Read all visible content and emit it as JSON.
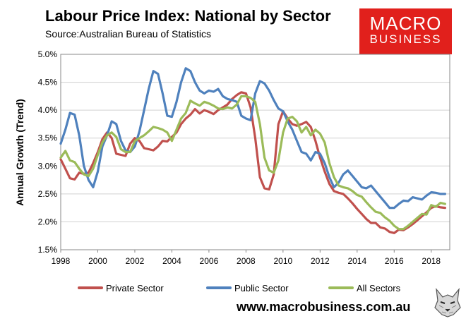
{
  "header": {
    "title": "Labour Price Index: National by Sector",
    "subtitle": "Source:Australian Bureau of Statistics"
  },
  "brand": {
    "line1": "MACRO",
    "line2": "BUSINESS",
    "color": "#e1201c"
  },
  "footer": {
    "url": "www.macrobusiness.com.au",
    "logo_icon": "wolf-icon"
  },
  "chart_data": {
    "type": "line",
    "title": "Labour Price Index: National by Sector",
    "xlabel": "",
    "ylabel": "Annual Growth (Trend)",
    "xlim": [
      1998,
      2019
    ],
    "ylim": [
      1.5,
      5.0
    ],
    "x_ticks": [
      1998,
      2000,
      2002,
      2004,
      2006,
      2008,
      2010,
      2012,
      2014,
      2016,
      2018
    ],
    "x_tick_labels": [
      "1998",
      "2000",
      "2002",
      "2004",
      "2006",
      "2008",
      "2010",
      "2012",
      "2014",
      "2016",
      "2018"
    ],
    "y_ticks": [
      1.5,
      2.0,
      2.5,
      3.0,
      3.5,
      4.0,
      4.5,
      5.0
    ],
    "y_tick_labels": [
      "1.5%",
      "2.0%",
      "2.5%",
      "3.0%",
      "3.5%",
      "4.0%",
      "4.5%",
      "5.0%"
    ],
    "grid": "horizontal",
    "legend_position": "bottom",
    "x": [
      1998.0,
      1998.25,
      1998.5,
      1998.75,
      1999.0,
      1999.25,
      1999.5,
      1999.75,
      2000.0,
      2000.25,
      2000.5,
      2000.75,
      2001.0,
      2001.25,
      2001.5,
      2001.75,
      2002.0,
      2002.25,
      2002.5,
      2002.75,
      2003.0,
      2003.25,
      2003.5,
      2003.75,
      2004.0,
      2004.25,
      2004.5,
      2004.75,
      2005.0,
      2005.25,
      2005.5,
      2005.75,
      2006.0,
      2006.25,
      2006.5,
      2006.75,
      2007.0,
      2007.25,
      2007.5,
      2007.75,
      2008.0,
      2008.25,
      2008.5,
      2008.75,
      2009.0,
      2009.25,
      2009.5,
      2009.75,
      2010.0,
      2010.25,
      2010.5,
      2010.75,
      2011.0,
      2011.25,
      2011.5,
      2011.75,
      2012.0,
      2012.25,
      2012.5,
      2012.75,
      2013.0,
      2013.25,
      2013.5,
      2013.75,
      2014.0,
      2014.25,
      2014.5,
      2014.75,
      2015.0,
      2015.25,
      2015.5,
      2015.75,
      2016.0,
      2016.25,
      2016.5,
      2016.75,
      2017.0,
      2017.25,
      2017.5,
      2017.75,
      2018.0,
      2018.25,
      2018.5,
      2018.75
    ],
    "series": [
      {
        "name": "Private Sector",
        "color": "#c0504d",
        "values": [
          3.12,
          2.95,
          2.78,
          2.76,
          2.88,
          2.86,
          2.88,
          3.05,
          3.25,
          3.48,
          3.6,
          3.5,
          3.22,
          3.2,
          3.18,
          3.4,
          3.5,
          3.45,
          3.32,
          3.3,
          3.28,
          3.35,
          3.45,
          3.44,
          3.52,
          3.6,
          3.75,
          3.85,
          3.92,
          4.02,
          3.94,
          4.0,
          3.97,
          3.93,
          4.0,
          4.05,
          4.1,
          4.2,
          4.27,
          4.32,
          4.3,
          4.05,
          3.5,
          2.8,
          2.6,
          2.58,
          2.85,
          3.75,
          3.98,
          3.85,
          3.75,
          3.72,
          3.75,
          3.79,
          3.7,
          3.45,
          3.15,
          2.9,
          2.68,
          2.55,
          2.52,
          2.5,
          2.42,
          2.33,
          2.23,
          2.14,
          2.05,
          1.98,
          1.98,
          1.9,
          1.88,
          1.82,
          1.8,
          1.86,
          1.85,
          1.9,
          1.96,
          2.03,
          2.1,
          2.17,
          2.25,
          2.28,
          2.26,
          2.25
        ]
      },
      {
        "name": "Public Sector",
        "color": "#4f81bd",
        "values": [
          3.4,
          3.65,
          3.95,
          3.92,
          3.55,
          3.0,
          2.75,
          2.62,
          2.9,
          3.35,
          3.55,
          3.8,
          3.75,
          3.45,
          3.28,
          3.25,
          3.35,
          3.62,
          4.0,
          4.38,
          4.7,
          4.65,
          4.3,
          3.9,
          3.88,
          4.15,
          4.5,
          4.75,
          4.7,
          4.5,
          4.35,
          4.3,
          4.35,
          4.33,
          4.38,
          4.25,
          4.2,
          4.18,
          4.15,
          3.9,
          3.85,
          3.82,
          4.3,
          4.52,
          4.48,
          4.35,
          4.18,
          4.03,
          3.98,
          3.8,
          3.65,
          3.45,
          3.25,
          3.22,
          3.1,
          3.25,
          3.22,
          3.05,
          2.8,
          2.62,
          2.7,
          2.85,
          2.92,
          2.82,
          2.72,
          2.62,
          2.6,
          2.65,
          2.55,
          2.45,
          2.35,
          2.25,
          2.25,
          2.32,
          2.38,
          2.37,
          2.44,
          2.42,
          2.4,
          2.47,
          2.53,
          2.52,
          2.5,
          2.5
        ]
      },
      {
        "name": "All Sectors",
        "color": "#9bbb59",
        "values": [
          3.15,
          3.27,
          3.1,
          3.07,
          2.95,
          2.85,
          2.82,
          2.95,
          3.2,
          3.42,
          3.55,
          3.6,
          3.52,
          3.3,
          3.25,
          3.25,
          3.45,
          3.5,
          3.55,
          3.62,
          3.7,
          3.68,
          3.65,
          3.6,
          3.45,
          3.65,
          3.85,
          3.95,
          4.17,
          4.12,
          4.08,
          4.15,
          4.12,
          4.08,
          4.03,
          4.02,
          4.05,
          4.03,
          4.1,
          4.25,
          4.25,
          4.22,
          4.15,
          3.75,
          3.15,
          2.92,
          2.88,
          3.1,
          3.6,
          3.85,
          3.88,
          3.8,
          3.6,
          3.7,
          3.55,
          3.65,
          3.58,
          3.42,
          3.05,
          2.8,
          2.65,
          2.62,
          2.6,
          2.55,
          2.48,
          2.45,
          2.35,
          2.26,
          2.18,
          2.16,
          2.08,
          2.02,
          1.93,
          1.87,
          1.87,
          1.93,
          2.0,
          2.07,
          2.14,
          2.13,
          2.3,
          2.27,
          2.34,
          2.32
        ]
      }
    ]
  }
}
